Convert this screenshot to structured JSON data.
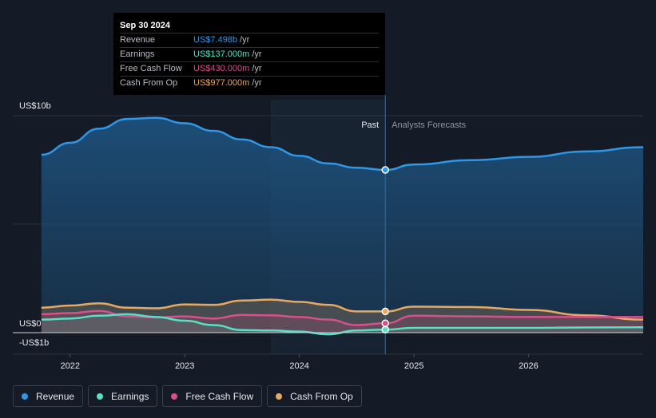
{
  "tooltip": {
    "date": "Sep 30 2024",
    "rows": [
      {
        "label": "Revenue",
        "value": "US$7.498b",
        "unit": "/yr",
        "color": "#2f97e8"
      },
      {
        "label": "Earnings",
        "value": "US$137.000m",
        "unit": "/yr",
        "color": "#56e0c6"
      },
      {
        "label": "Free Cash Flow",
        "value": "US$430.000m",
        "unit": "/yr",
        "color": "#d7508a"
      },
      {
        "label": "Cash From Op",
        "value": "US$977.000m",
        "unit": "/yr",
        "color": "#e9a860"
      }
    ]
  },
  "labels": {
    "past": "Past",
    "forecast": "Analysts Forecasts"
  },
  "legend": [
    {
      "label": "Revenue",
      "color": "#2f97e8"
    },
    {
      "label": "Earnings",
      "color": "#56e0c6"
    },
    {
      "label": "Free Cash Flow",
      "color": "#d7508a"
    },
    {
      "label": "Cash From Op",
      "color": "#e9a860"
    }
  ],
  "chart_data": {
    "type": "area",
    "x_ticks": [
      2022,
      2023,
      2024,
      2025,
      2026
    ],
    "x_range": [
      2021.5,
      2027.0
    ],
    "y_ticks": [
      {
        "value": 10,
        "label": "US$10b"
      },
      {
        "value": 0,
        "label": "US$0"
      },
      {
        "value": -1,
        "label": "-US$1b"
      }
    ],
    "ylim": [
      -1,
      10
    ],
    "grid": true,
    "past_end": 2024.75,
    "highlight_start": 2023.75,
    "series": [
      {
        "name": "Revenue",
        "color": "#2f97e8",
        "points": [
          [
            2021.75,
            8.2
          ],
          [
            2022.0,
            8.75
          ],
          [
            2022.25,
            9.4
          ],
          [
            2022.5,
            9.85
          ],
          [
            2022.75,
            9.9
          ],
          [
            2023.0,
            9.65
          ],
          [
            2023.25,
            9.3
          ],
          [
            2023.5,
            8.9
          ],
          [
            2023.75,
            8.55
          ],
          [
            2024.0,
            8.15
          ],
          [
            2024.25,
            7.8
          ],
          [
            2024.5,
            7.6
          ],
          [
            2024.75,
            7.498
          ],
          [
            2025.0,
            7.75
          ],
          [
            2025.5,
            7.95
          ],
          [
            2026.0,
            8.1
          ],
          [
            2026.5,
            8.35
          ],
          [
            2027.0,
            8.55
          ]
        ]
      },
      {
        "name": "Cash From Op",
        "color": "#e9a860",
        "points": [
          [
            2021.75,
            1.15
          ],
          [
            2022.0,
            1.25
          ],
          [
            2022.25,
            1.35
          ],
          [
            2022.5,
            1.15
          ],
          [
            2022.75,
            1.12
          ],
          [
            2023.0,
            1.3
          ],
          [
            2023.25,
            1.28
          ],
          [
            2023.5,
            1.48
          ],
          [
            2023.75,
            1.52
          ],
          [
            2024.0,
            1.42
          ],
          [
            2024.25,
            1.28
          ],
          [
            2024.5,
            0.98
          ],
          [
            2024.75,
            0.977
          ],
          [
            2025.0,
            1.2
          ],
          [
            2025.5,
            1.18
          ],
          [
            2026.0,
            1.05
          ],
          [
            2026.5,
            0.8
          ],
          [
            2027.0,
            0.6
          ]
        ]
      },
      {
        "name": "Free Cash Flow",
        "color": "#d7508a",
        "points": [
          [
            2021.75,
            0.85
          ],
          [
            2022.0,
            0.9
          ],
          [
            2022.25,
            1.0
          ],
          [
            2022.5,
            0.75
          ],
          [
            2022.75,
            0.7
          ],
          [
            2023.0,
            0.75
          ],
          [
            2023.25,
            0.65
          ],
          [
            2023.5,
            0.82
          ],
          [
            2023.75,
            0.8
          ],
          [
            2024.0,
            0.72
          ],
          [
            2024.25,
            0.6
          ],
          [
            2024.5,
            0.35
          ],
          [
            2024.75,
            0.43
          ],
          [
            2025.0,
            0.78
          ],
          [
            2025.5,
            0.75
          ],
          [
            2026.0,
            0.72
          ],
          [
            2026.5,
            0.72
          ],
          [
            2027.0,
            0.72
          ]
        ]
      },
      {
        "name": "Earnings",
        "color": "#56e0c6",
        "points": [
          [
            2021.75,
            0.6
          ],
          [
            2022.0,
            0.65
          ],
          [
            2022.25,
            0.78
          ],
          [
            2022.5,
            0.85
          ],
          [
            2022.75,
            0.72
          ],
          [
            2023.0,
            0.55
          ],
          [
            2023.25,
            0.35
          ],
          [
            2023.5,
            0.12
          ],
          [
            2023.75,
            0.1
          ],
          [
            2024.0,
            0.05
          ],
          [
            2024.25,
            -0.08
          ],
          [
            2024.5,
            0.1
          ],
          [
            2024.75,
            0.137
          ],
          [
            2025.0,
            0.22
          ],
          [
            2025.5,
            0.22
          ],
          [
            2026.0,
            0.22
          ],
          [
            2026.5,
            0.24
          ],
          [
            2027.0,
            0.25
          ]
        ]
      }
    ]
  }
}
